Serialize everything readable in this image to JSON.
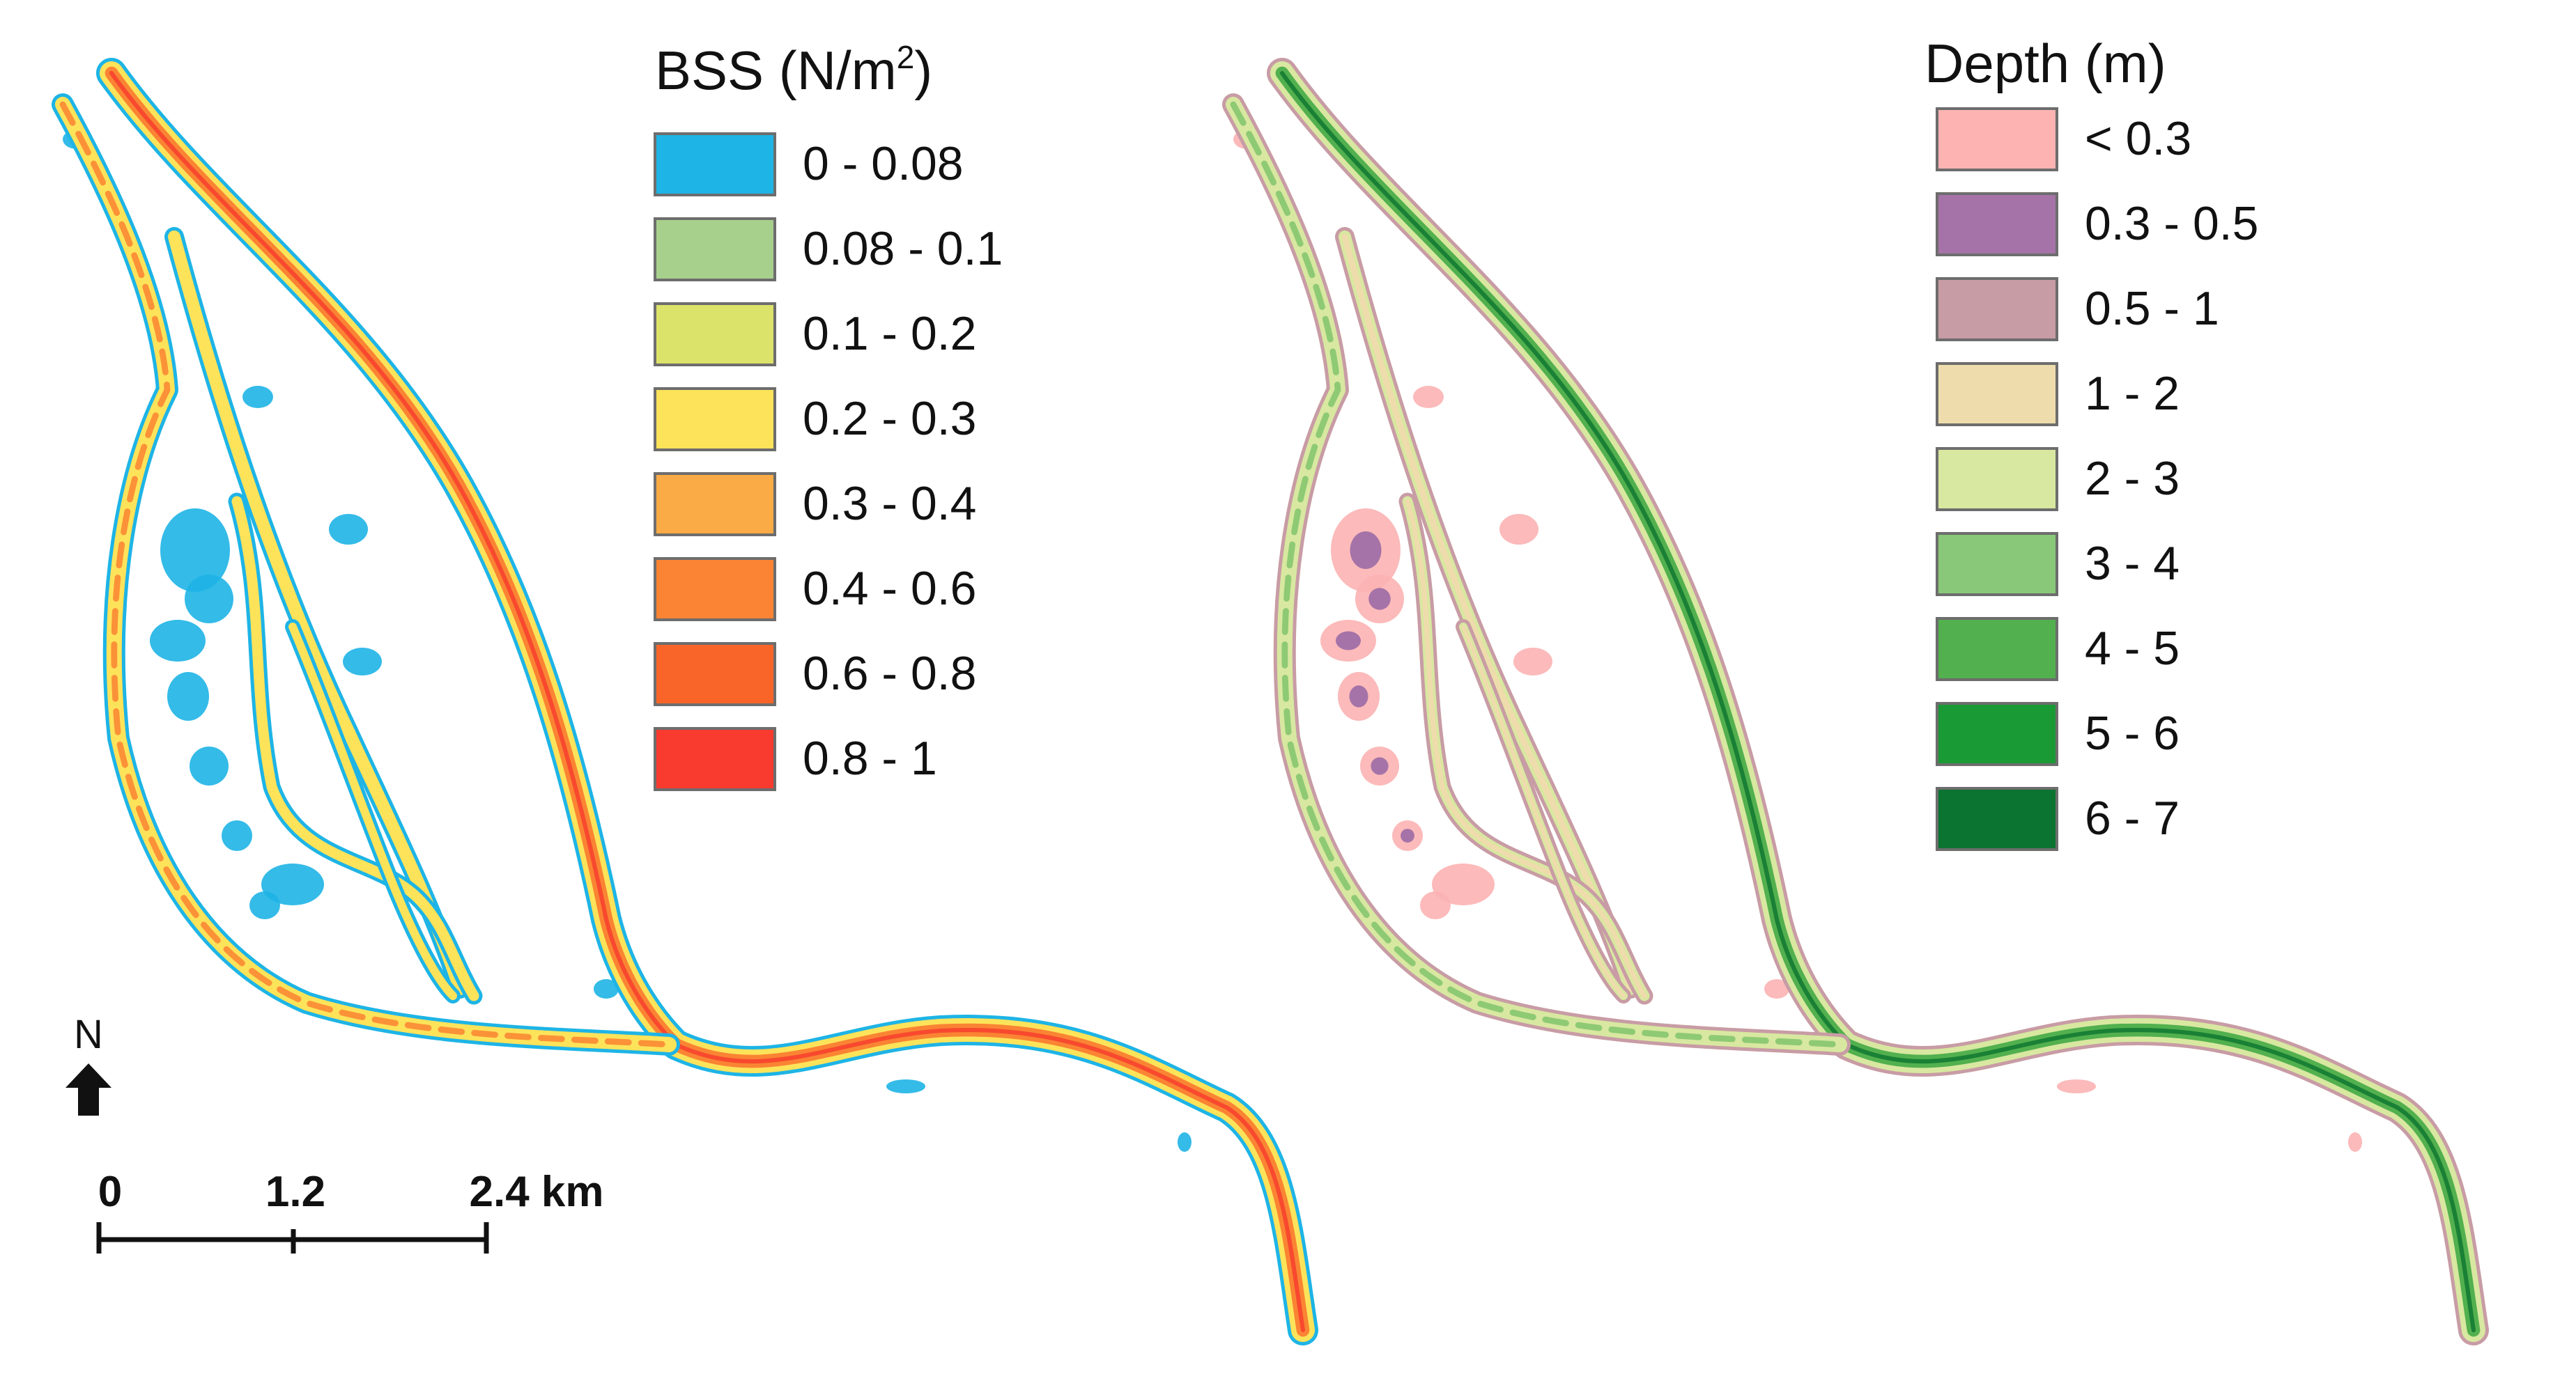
{
  "panels": [
    {
      "legend_title": "BSS (N/m",
      "legend_title_sup": "2",
      "legend_title_end": ")",
      "classes": [
        {
          "label": "0 - 0.08",
          "color": "#1EB4E6"
        },
        {
          "label": "0.08 - 0.1",
          "color": "#A8D08D"
        },
        {
          "label": "0.1 - 0.2",
          "color": "#DCE36A"
        },
        {
          "label": "0.2 - 0.3",
          "color": "#FDE35A"
        },
        {
          "label": "0.3 - 0.4",
          "color": "#FBAB45"
        },
        {
          "label": "0.4 - 0.6",
          "color": "#FA8433"
        },
        {
          "label": "0.6 - 0.8",
          "color": "#F96529"
        },
        {
          "label": "0.8 - 1",
          "color": "#F83B2E"
        }
      ]
    },
    {
      "legend_title": "Depth (m)",
      "classes": [
        {
          "label": "< 0.3",
          "color": "#FCB3B2"
        },
        {
          "label": "0.3 - 0.5",
          "color": "#A573A8"
        },
        {
          "label": "0.5 - 1",
          "color": "#C89CA5"
        },
        {
          "label": "1 - 2",
          "color": "#EEDCAC"
        },
        {
          "label": "2 - 3",
          "color": "#D8E8A0"
        },
        {
          "label": "3 - 4",
          "color": "#88C878"
        },
        {
          "label": "4 - 5",
          "color": "#52B04E"
        },
        {
          "label": "5 - 6",
          "color": "#1A9A35"
        },
        {
          "label": "6 - 7",
          "color": "#0B7430"
        }
      ]
    }
  ],
  "north_arrow": {
    "label": "N"
  },
  "scale_bar": {
    "ticks": [
      "0",
      "1.2",
      "2.4 km"
    ]
  },
  "colors": {
    "bss_edge": "#1EB4E6",
    "bss_mid": "#FDE35A",
    "bss_core": "#FA8433",
    "bss_peak": "#F83B2E",
    "depth_edge": "#C89CA5",
    "depth_shallow": "#FCB3B2",
    "depth_mid": "#D8E8A0",
    "depth_deep": "#52B04E",
    "depth_deepest": "#0B7430"
  }
}
